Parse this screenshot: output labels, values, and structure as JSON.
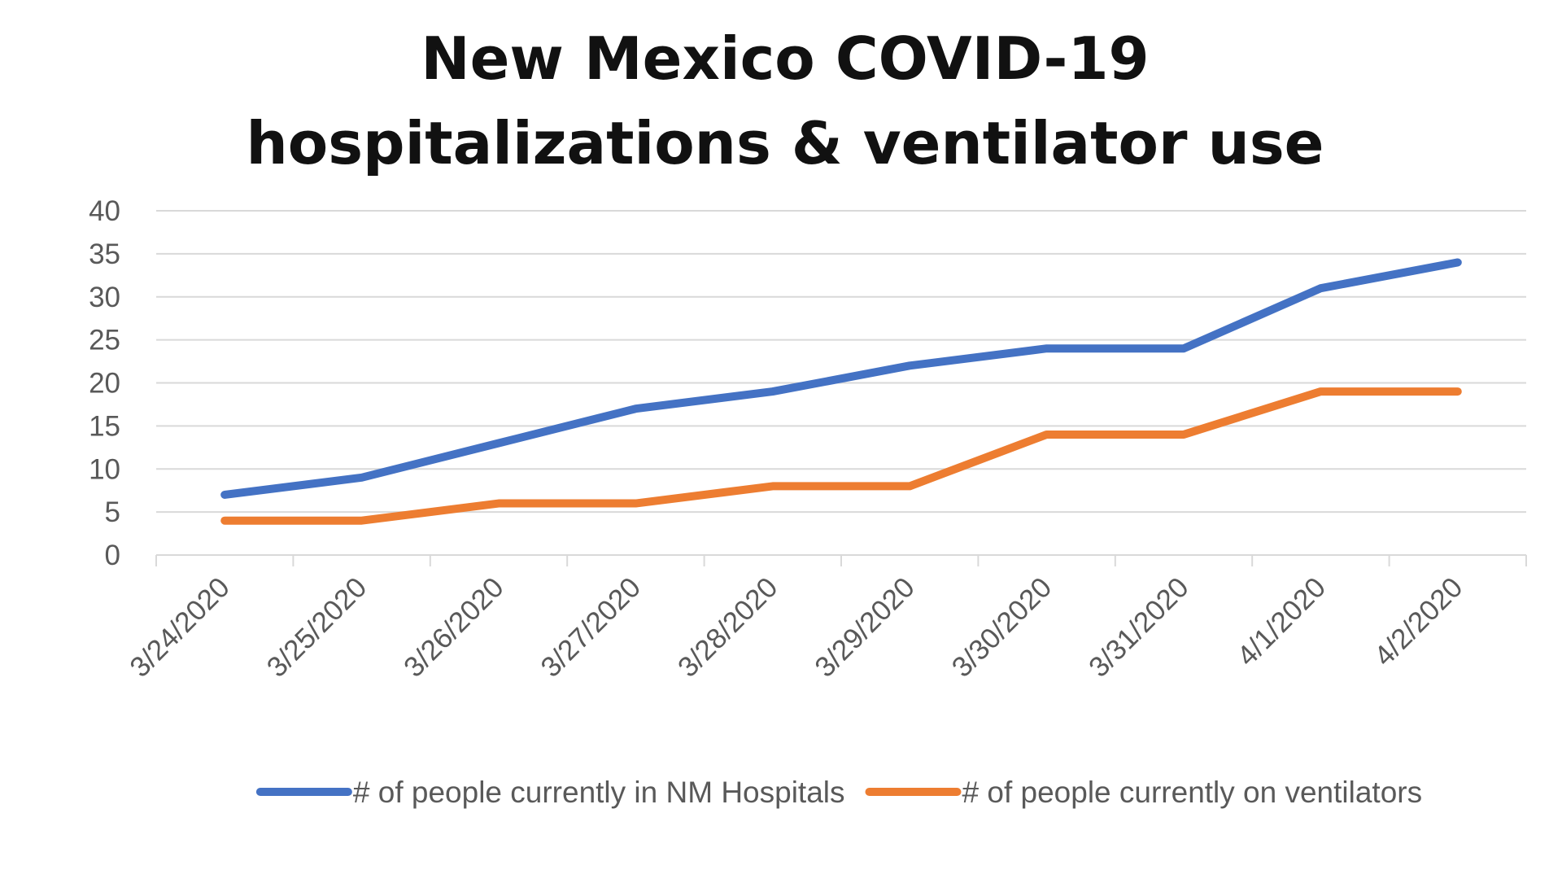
{
  "chart_data": {
    "type": "line",
    "title": [
      "New Mexico COVID-19",
      "hospitalizations & ventilator use"
    ],
    "xlabel": "",
    "ylabel": "",
    "categories": [
      "3/24/2020",
      "3/25/2020",
      "3/26/2020",
      "3/27/2020",
      "3/28/2020",
      "3/29/2020",
      "3/30/2020",
      "3/31/2020",
      "4/1/2020",
      "4/2/2020"
    ],
    "ylim": [
      0,
      40
    ],
    "yticks": [
      "0",
      "5",
      "10",
      "15",
      "20",
      "25",
      "30",
      "35",
      "40"
    ],
    "grid": true,
    "legend_position": "bottom",
    "series": [
      {
        "name": "# of people currently in NM Hospitals",
        "color": "#4472C4",
        "values": [
          7,
          9,
          13,
          17,
          19,
          22,
          24,
          24,
          31,
          34
        ]
      },
      {
        "name": "# of people currently on ventilators",
        "color": "#ED7D31",
        "values": [
          4,
          4,
          6,
          6,
          8,
          8,
          14,
          14,
          19,
          19
        ]
      }
    ]
  }
}
